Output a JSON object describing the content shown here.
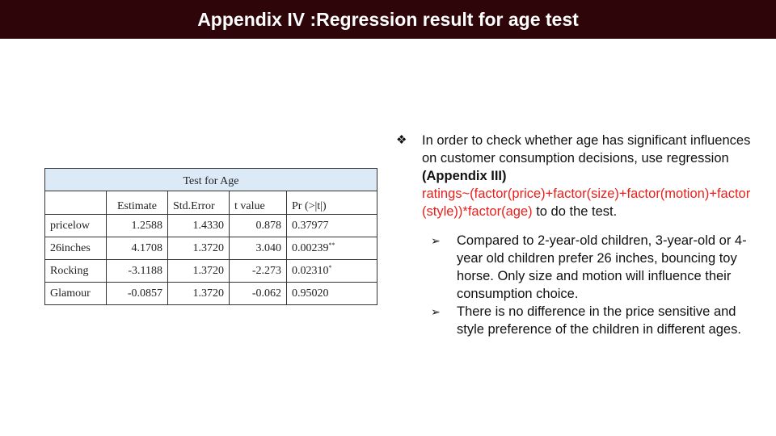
{
  "slide": {
    "title": "Appendix IV :Regression result for age test"
  },
  "table": {
    "caption": "Test for Age",
    "headers": [
      "",
      "Estimate",
      "Std.Error",
      "t value",
      "Pr (>|t|)"
    ],
    "rows": [
      {
        "name": "pricelow",
        "estimate": "1.2588",
        "std_error": "1.4330",
        "t_value": "0.878",
        "p_value": "0.37977",
        "sig": ""
      },
      {
        "name": "26inches",
        "estimate": "4.1708",
        "std_error": "1.3720",
        "t_value": "3.040",
        "p_value": "0.00239",
        "sig": "**"
      },
      {
        "name": "Rocking",
        "estimate": "-3.1188",
        "std_error": "1.3720",
        "t_value": "-2.273",
        "p_value": "0.02310",
        "sig": "*"
      },
      {
        "name": "Glamour",
        "estimate": "-0.0857",
        "std_error": "1.3720",
        "t_value": "-0.062",
        "p_value": "0.95020",
        "sig": ""
      }
    ]
  },
  "bullets": {
    "main_marker": "❖",
    "main_text_1": "In order to check whether age has significant influences on customer consumption decisions, use regression ",
    "main_bold": "(Appendix III)",
    "main_formula": "ratings~(factor(price)+factor(size)+factor(motion)+factor(style))*factor(age)",
    "main_text_2": " to do the test.",
    "sub_marker": "➢",
    "sub_items": [
      "Compared to 2-year-old children, 3-year-old or 4-year old children prefer 26 inches, bouncing toy horse.  Only size and motion will influence their consumption choice.",
      "There is no difference in the price sensitive and style preference of the children in different ages."
    ]
  },
  "colors": {
    "title_bar": "#2e0508",
    "table_caption_bg": "#dce9f6",
    "formula_red": "#e8201c"
  }
}
